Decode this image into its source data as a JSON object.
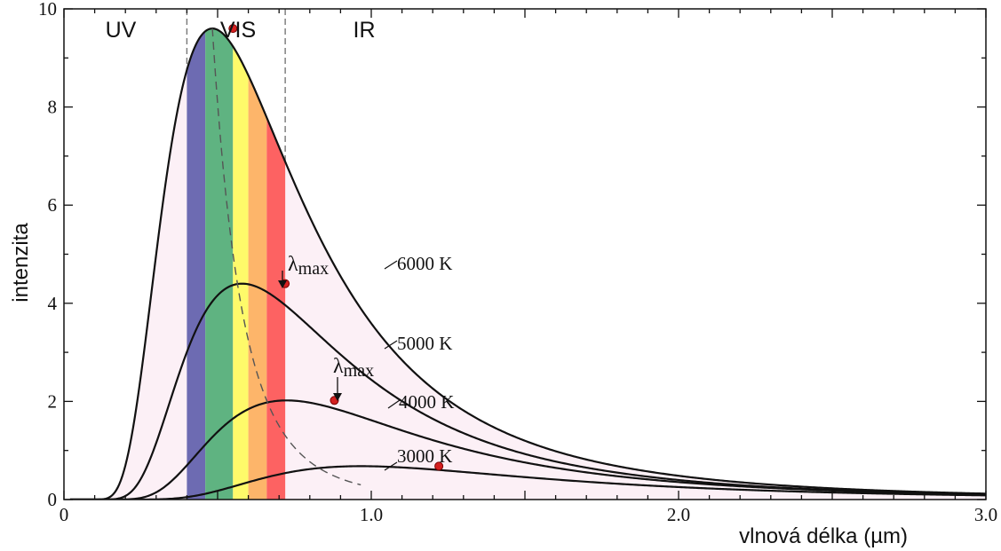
{
  "chart_data": {
    "type": "line",
    "xlabel": "vlnová délka (µm)",
    "ylabel": "intenzita",
    "xlim": [
      0,
      3.0
    ],
    "ylim": [
      0,
      10
    ],
    "x_ticks": [
      {
        "value": 0,
        "label": "0"
      },
      {
        "value": 1.0,
        "label": "1.0"
      },
      {
        "value": 2.0,
        "label": "2.0"
      },
      {
        "value": 3.0,
        "label": "3.0"
      }
    ],
    "y_ticks": [
      {
        "value": 0,
        "label": "0"
      },
      {
        "value": 2,
        "label": "2"
      },
      {
        "value": 4,
        "label": "4"
      },
      {
        "value": 6,
        "label": "6"
      },
      {
        "value": 8,
        "label": "8"
      },
      {
        "value": 10,
        "label": "10"
      }
    ],
    "grid": false,
    "regions": [
      {
        "label": "UV",
        "from": 0,
        "to": 0.4
      },
      {
        "label": "VIS",
        "from": 0.4,
        "to": 0.72
      },
      {
        "label": "IR",
        "from": 0.72,
        "to": 3.0
      }
    ],
    "visible_bands": [
      {
        "from": 0.4,
        "to": 0.46,
        "color": "#6d6bb2"
      },
      {
        "from": 0.46,
        "to": 0.55,
        "color": "#5fb381"
      },
      {
        "from": 0.55,
        "to": 0.6,
        "color": "#fefa6a"
      },
      {
        "from": 0.6,
        "to": 0.66,
        "color": "#fdb56a"
      },
      {
        "from": 0.66,
        "to": 0.72,
        "color": "#fd6262"
      }
    ],
    "series": [
      {
        "name": "6000 K",
        "temperature": 6000,
        "peak": {
          "x": 0.55,
          "y": 9.6
        }
      },
      {
        "name": "5000 K",
        "temperature": 5000,
        "peak": {
          "x": 0.72,
          "y": 4.4
        }
      },
      {
        "name": "4000 K",
        "temperature": 4000,
        "peak": {
          "x": 0.88,
          "y": 2.02
        }
      },
      {
        "name": "3000 K",
        "temperature": 3000,
        "peak": {
          "x": 1.22,
          "y": 0.68
        }
      }
    ],
    "annotations": [
      {
        "text": "λ",
        "sub": "max",
        "points_to": "5000 K"
      },
      {
        "text": "λ",
        "sub": "max",
        "points_to": "4000 K"
      }
    ],
    "colors": {
      "fill": "#fcf0f6",
      "curve": "#111111",
      "peak": "#d42020",
      "dashed": "#555555"
    }
  }
}
